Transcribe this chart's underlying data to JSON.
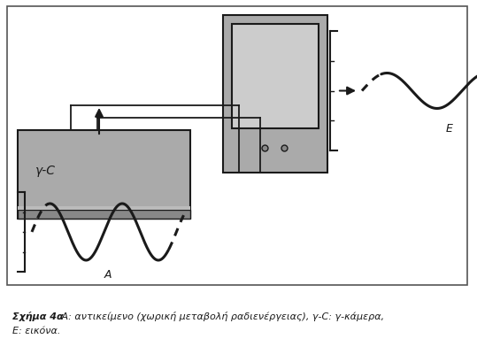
{
  "fig_width": 5.39,
  "fig_height": 4.1,
  "dpi": 100,
  "bg_color": "#ffffff",
  "gray_box_color": "#aaaaaa",
  "gray_light_color": "#cccccc",
  "dark_gray": "#888888",
  "line_color": "#1a1a1a",
  "wave_lw": 2.2,
  "caption_bold": "Σχήμα 4α",
  "caption_rest_line1": " Α: αντικείμενο (χωρική μεταβολή ραδιενέργειας), γ-C: γ-κάμερα,",
  "caption_line2": "Ε: εικόνα.",
  "label_A": "A",
  "label_E": "E",
  "label_gamma_C": "γ-C",
  "xlim": [
    0,
    539
  ],
  "ylim": [
    0,
    410
  ]
}
